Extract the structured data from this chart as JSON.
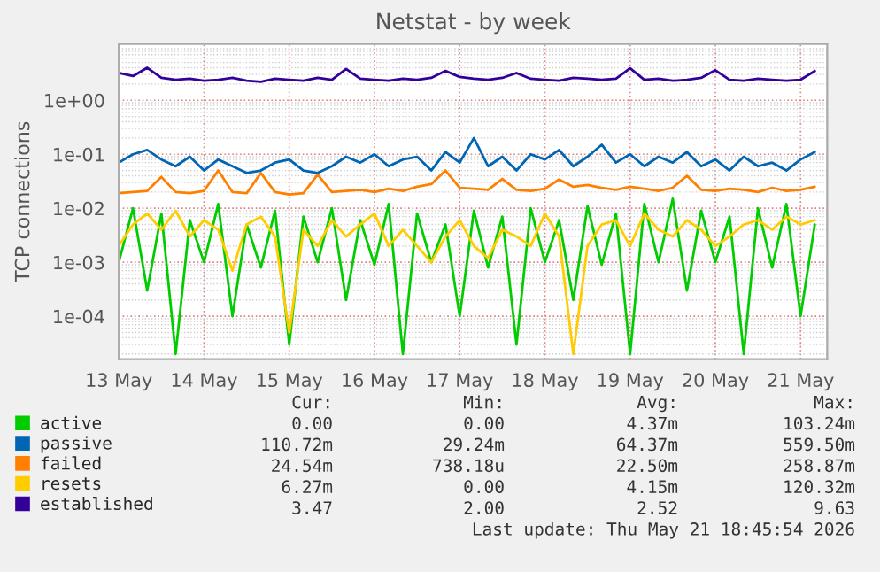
{
  "chart_data": {
    "type": "line",
    "title": "Netstat - by week",
    "ylabel": "TCP connections",
    "log": "y",
    "grid": true,
    "legend": "bottom",
    "line_style": "solid",
    "marker": "none",
    "xlim": [
      "2026-05-13T00:00",
      "2026-05-21T07:30"
    ],
    "xticks": [
      {
        "value": "2026-05-13",
        "label": "13 May"
      },
      {
        "value": "2026-05-14",
        "label": "14 May"
      },
      {
        "value": "2026-05-15",
        "label": "15 May"
      },
      {
        "value": "2026-05-16",
        "label": "16 May"
      },
      {
        "value": "2026-05-17",
        "label": "17 May"
      },
      {
        "value": "2026-05-18",
        "label": "18 May"
      },
      {
        "value": "2026-05-19",
        "label": "19 May"
      },
      {
        "value": "2026-05-20",
        "label": "20 May"
      },
      {
        "value": "2026-05-21",
        "label": "21 May"
      }
    ],
    "ylim": [
      1.6e-05,
      11
    ],
    "yticks": [
      {
        "value": 0.0001,
        "label": "1e-04"
      },
      {
        "value": 0.001,
        "label": "1e-03"
      },
      {
        "value": 0.01,
        "label": "1e-02"
      },
      {
        "value": 0.1,
        "label": "1e-01"
      },
      {
        "value": 1,
        "label": "1e+00"
      }
    ],
    "x": [
      "2026-05-13T00:00",
      "2026-05-13T04:00",
      "2026-05-13T08:00",
      "2026-05-13T12:00",
      "2026-05-13T16:00",
      "2026-05-13T20:00",
      "2026-05-14T00:00",
      "2026-05-14T04:00",
      "2026-05-14T08:00",
      "2026-05-14T12:00",
      "2026-05-14T16:00",
      "2026-05-14T20:00",
      "2026-05-15T00:00",
      "2026-05-15T04:00",
      "2026-05-15T08:00",
      "2026-05-15T12:00",
      "2026-05-15T16:00",
      "2026-05-15T20:00",
      "2026-05-16T00:00",
      "2026-05-16T04:00",
      "2026-05-16T08:00",
      "2026-05-16T12:00",
      "2026-05-16T16:00",
      "2026-05-16T20:00",
      "2026-05-17T00:00",
      "2026-05-17T04:00",
      "2026-05-17T08:00",
      "2026-05-17T12:00",
      "2026-05-17T16:00",
      "2026-05-17T20:00",
      "2026-05-18T00:00",
      "2026-05-18T04:00",
      "2026-05-18T08:00",
      "2026-05-18T12:00",
      "2026-05-18T16:00",
      "2026-05-18T20:00",
      "2026-05-19T00:00",
      "2026-05-19T04:00",
      "2026-05-19T08:00",
      "2026-05-19T12:00",
      "2026-05-19T16:00",
      "2026-05-19T20:00",
      "2026-05-20T00:00",
      "2026-05-20T04:00",
      "2026-05-20T08:00",
      "2026-05-20T12:00",
      "2026-05-20T16:00",
      "2026-05-20T20:00",
      "2026-05-21T00:00",
      "2026-05-21T04:00"
    ],
    "series": [
      {
        "name": "active",
        "color": "#00cc00",
        "values": [
          0.001,
          0.01,
          0.0003,
          0.008,
          2e-05,
          0.006,
          0.001,
          0.012,
          0.0001,
          0.005,
          0.0008,
          0.009,
          3e-05,
          0.007,
          0.001,
          0.01,
          0.0002,
          0.006,
          0.0009,
          0.012,
          2e-05,
          0.008,
          0.001,
          0.005,
          0.0001,
          0.009,
          0.0008,
          0.007,
          3e-05,
          0.01,
          0.001,
          0.006,
          0.0002,
          0.011,
          0.0009,
          0.008,
          2e-05,
          0.012,
          0.001,
          0.015,
          0.0003,
          0.009,
          0.001,
          0.007,
          2e-05,
          0.01,
          0.0008,
          0.012,
          0.0001,
          0.005
        ]
      },
      {
        "name": "passive",
        "color": "#0066b3",
        "values": [
          0.07,
          0.1,
          0.12,
          0.08,
          0.06,
          0.09,
          0.05,
          0.08,
          0.06,
          0.045,
          0.05,
          0.07,
          0.08,
          0.05,
          0.045,
          0.06,
          0.09,
          0.07,
          0.1,
          0.06,
          0.08,
          0.09,
          0.05,
          0.11,
          0.07,
          0.2,
          0.06,
          0.09,
          0.05,
          0.1,
          0.08,
          0.12,
          0.06,
          0.09,
          0.15,
          0.07,
          0.1,
          0.06,
          0.09,
          0.07,
          0.11,
          0.06,
          0.08,
          0.05,
          0.09,
          0.06,
          0.07,
          0.05,
          0.08,
          0.11
        ]
      },
      {
        "name": "failed",
        "color": "#ff8000",
        "values": [
          0.019,
          0.02,
          0.021,
          0.038,
          0.02,
          0.019,
          0.021,
          0.05,
          0.02,
          0.019,
          0.045,
          0.02,
          0.018,
          0.019,
          0.042,
          0.02,
          0.021,
          0.022,
          0.02,
          0.023,
          0.021,
          0.025,
          0.028,
          0.05,
          0.024,
          0.023,
          0.022,
          0.035,
          0.022,
          0.021,
          0.023,
          0.034,
          0.025,
          0.027,
          0.024,
          0.022,
          0.025,
          0.023,
          0.021,
          0.024,
          0.04,
          0.022,
          0.021,
          0.023,
          0.022,
          0.02,
          0.024,
          0.021,
          0.022,
          0.025
        ]
      },
      {
        "name": "resets",
        "color": "#ffcc00",
        "values": [
          0.002,
          0.005,
          0.008,
          0.004,
          0.009,
          0.003,
          0.006,
          0.004,
          0.0007,
          0.005,
          0.007,
          0.003,
          5e-05,
          0.004,
          0.002,
          0.006,
          0.003,
          0.005,
          0.008,
          0.002,
          0.004,
          0.002,
          0.001,
          0.003,
          0.006,
          0.002,
          0.0012,
          0.004,
          0.003,
          0.002,
          0.008,
          0.003,
          2e-05,
          0.002,
          0.005,
          0.006,
          0.002,
          0.008,
          0.004,
          0.003,
          0.006,
          0.004,
          0.002,
          0.003,
          0.005,
          0.006,
          0.004,
          0.007,
          0.005,
          0.006
        ]
      },
      {
        "name": "established",
        "color": "#330099",
        "values": [
          3.2,
          2.8,
          4.0,
          2.6,
          2.4,
          2.5,
          2.3,
          2.4,
          2.6,
          2.3,
          2.2,
          2.5,
          2.4,
          2.3,
          2.6,
          2.4,
          3.8,
          2.5,
          2.4,
          2.3,
          2.5,
          2.4,
          2.6,
          3.5,
          2.7,
          2.5,
          2.4,
          2.6,
          3.2,
          2.5,
          2.4,
          2.3,
          2.6,
          2.5,
          2.4,
          2.5,
          3.9,
          2.4,
          2.5,
          2.3,
          2.4,
          2.6,
          3.6,
          2.4,
          2.3,
          2.5,
          2.4,
          2.3,
          2.4,
          3.47
        ]
      }
    ],
    "annotations": [
      "Cur:",
      "Min:",
      "Avg:",
      "Max:",
      "0.00",
      "0.00",
      "4.37m",
      "103.24m",
      "110.72m",
      "29.24m",
      "64.37m",
      "559.50m",
      "24.54m",
      "738.18u",
      "22.50m",
      "258.87m",
      "6.27m",
      "0.00",
      "4.15m",
      "120.32m",
      "3.47",
      "2.00",
      "2.52",
      "9.63",
      "Last update: Thu May 21 18:45:54 2026"
    ]
  }
}
